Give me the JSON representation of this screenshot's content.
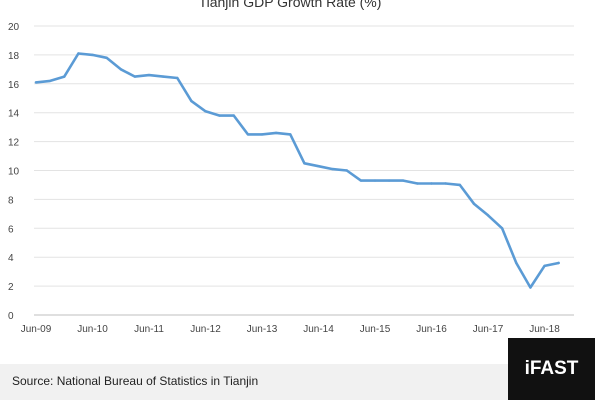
{
  "chart_data": {
    "type": "line",
    "title": "Tianjin GDP Growth Rate (%)",
    "xlabel": "",
    "ylabel": "",
    "ylim": [
      0,
      20
    ],
    "yticks": [
      0,
      2,
      4,
      6,
      8,
      10,
      12,
      14,
      16,
      18,
      20
    ],
    "xticks": [
      "Jun-09",
      "Jun-10",
      "Jun-11",
      "Jun-12",
      "Jun-13",
      "Jun-14",
      "Jun-15",
      "Jun-16",
      "Jun-17",
      "Jun-18"
    ],
    "grid": "horizontal",
    "line_color": "#5b9bd5",
    "series": [
      {
        "x": [
          "Jun-09",
          "Sep-09",
          "Dec-09",
          "Mar-10",
          "Jun-10",
          "Sep-10",
          "Dec-10",
          "Mar-11",
          "Jun-11",
          "Sep-11",
          "Dec-11",
          "Mar-12",
          "Jun-12",
          "Sep-12",
          "Dec-12",
          "Mar-13",
          "Jun-13",
          "Sep-13",
          "Dec-13",
          "Mar-14",
          "Jun-14",
          "Sep-14",
          "Dec-14",
          "Mar-15",
          "Jun-15",
          "Sep-15",
          "Dec-15",
          "Mar-16",
          "Jun-16",
          "Sep-16",
          "Dec-16",
          "Mar-17",
          "Jun-17",
          "Sep-17",
          "Dec-17",
          "Mar-18",
          "Jun-18",
          "Sep-18"
        ],
        "values": [
          16.1,
          16.2,
          16.5,
          18.1,
          18.0,
          17.8,
          17.0,
          16.5,
          16.6,
          16.5,
          16.4,
          14.8,
          14.1,
          13.8,
          13.8,
          12.5,
          12.5,
          12.6,
          12.5,
          10.5,
          10.3,
          10.1,
          10.0,
          9.3,
          9.3,
          9.3,
          9.3,
          9.1,
          9.1,
          9.1,
          9.0,
          7.7,
          6.9,
          6.0,
          3.6,
          1.9,
          3.4,
          3.6
        ]
      }
    ]
  },
  "footer": {
    "source": "Source: National Bureau of Statistics in Tianjin",
    "logo": "iFAST"
  }
}
